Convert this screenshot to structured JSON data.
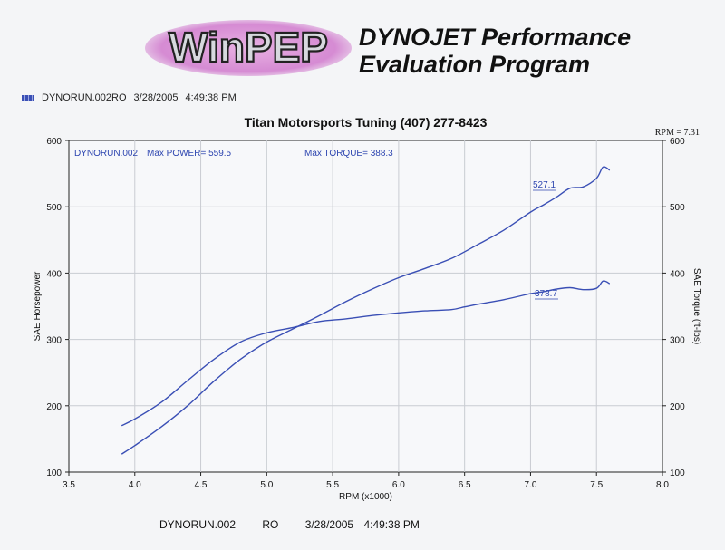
{
  "header": {
    "logo_text": "WinPEP",
    "title_line1": "DYNOJET Performance",
    "title_line2": "Evaluation Program"
  },
  "run_legend": {
    "run": "DYNORUN.002RO",
    "date": "3/28/2005",
    "time": "4:49:38 PM"
  },
  "footer": {
    "run": "DYNORUN.002",
    "mode": "RO",
    "date": "3/28/2005",
    "time": "4:49:38 PM"
  },
  "colors": {
    "curve": "#3a4fb5",
    "annotation": "#2e46b0",
    "grid": "#c9ccd2",
    "axis": "#222222"
  },
  "chart_data": {
    "type": "line",
    "title": "Titan Motorsports Tuning (407) 277-8423",
    "xlabel": "RPM (x1000)",
    "ylabel": "SAE Horsepower",
    "y2label": "SAE Torque (ft-lbs)",
    "xlim": [
      3.5,
      8.0
    ],
    "ylim": [
      100,
      600
    ],
    "y2lim": [
      100,
      600
    ],
    "xticks": [
      "3.5",
      "4.0",
      "4.5",
      "5.0",
      "5.5",
      "6.0",
      "6.5",
      "7.0",
      "7.5",
      "8.0"
    ],
    "yticks": [
      "100",
      "200",
      "300",
      "400",
      "500",
      "600"
    ],
    "y2ticks": [
      "100",
      "200",
      "300",
      "400",
      "500",
      "600"
    ],
    "grid": true,
    "rpm_corner": "RPM = 7.31",
    "annotations": {
      "run": "DYNORUN.002",
      "max_power": "Max POWER= 559.5",
      "max_torque": "Max TORQUE= 388.3",
      "power_label": "527.1",
      "torque_label": "378.7"
    },
    "series": [
      {
        "axis": "left",
        "x": [
          3.9,
          4.0,
          4.2,
          4.4,
          4.6,
          4.8,
          5.0,
          5.2,
          5.4,
          5.6,
          5.8,
          6.0,
          6.2,
          6.4,
          6.6,
          6.8,
          7.0,
          7.1,
          7.2,
          7.3,
          7.4,
          7.5,
          7.55,
          7.6
        ],
        "values": [
          127,
          140,
          168,
          200,
          237,
          270,
          296,
          316,
          336,
          357,
          376,
          393,
          407,
          422,
          443,
          465,
          492,
          503,
          515,
          528,
          530,
          543,
          560,
          555
        ]
      },
      {
        "axis": "right",
        "x": [
          3.9,
          4.0,
          4.2,
          4.4,
          4.6,
          4.8,
          5.0,
          5.2,
          5.4,
          5.6,
          5.8,
          6.0,
          6.2,
          6.4,
          6.5,
          6.6,
          6.8,
          7.0,
          7.1,
          7.2,
          7.3,
          7.4,
          7.5,
          7.55,
          7.6
        ],
        "values": [
          170,
          180,
          205,
          238,
          270,
          296,
          310,
          318,
          327,
          331,
          336,
          340,
          343,
          345,
          349,
          353,
          360,
          369,
          372,
          376,
          378,
          375,
          377,
          388,
          384
        ]
      }
    ]
  }
}
